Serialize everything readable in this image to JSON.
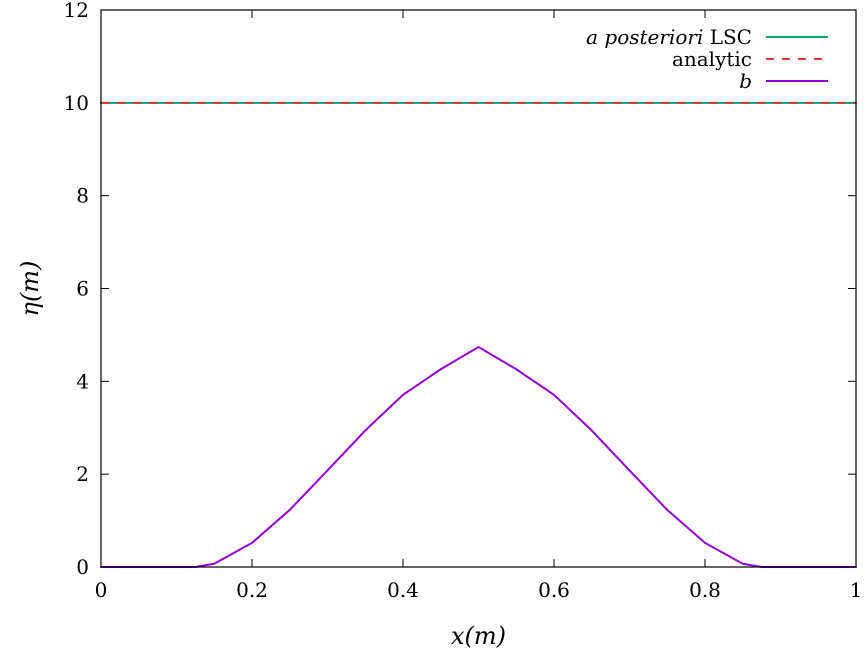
{
  "chart_data": {
    "type": "line",
    "xlabel": "x(m)",
    "ylabel": "η(m)",
    "xlim": [
      0,
      1
    ],
    "ylim": [
      0,
      12
    ],
    "x_ticks": [
      "0",
      "0.2",
      "0.4",
      "0.6",
      "0.8",
      "1"
    ],
    "y_ticks": [
      "0",
      "2",
      "4",
      "6",
      "8",
      "10",
      "12"
    ],
    "grid": false,
    "legend_position": "top-right",
    "series": [
      {
        "name": "a posteriori LSC",
        "legend_parts": [
          "a posteriori",
          "LSC"
        ],
        "color": "#009e73",
        "style": "solid",
        "x": [
          0,
          1
        ],
        "y": [
          10,
          10
        ]
      },
      {
        "name": "analytic",
        "color": "#e5352b",
        "style": "dashed",
        "x": [
          0,
          1
        ],
        "y": [
          10,
          10
        ]
      },
      {
        "name": "b",
        "color": "#9400d3",
        "style": "solid",
        "x": [
          0,
          0.05,
          0.1,
          0.125,
          0.15,
          0.2,
          0.25,
          0.3,
          0.35,
          0.4,
          0.45,
          0.5,
          0.55,
          0.6,
          0.65,
          0.7,
          0.75,
          0.8,
          0.85,
          0.875,
          0.9,
          0.95,
          1.0
        ],
        "y": [
          0,
          0,
          0,
          0,
          0.07,
          0.52,
          1.23,
          2.08,
          2.94,
          3.71,
          4.26,
          4.74,
          4.26,
          3.71,
          2.94,
          2.08,
          1.23,
          0.52,
          0.07,
          0,
          0,
          0,
          0
        ]
      }
    ]
  }
}
